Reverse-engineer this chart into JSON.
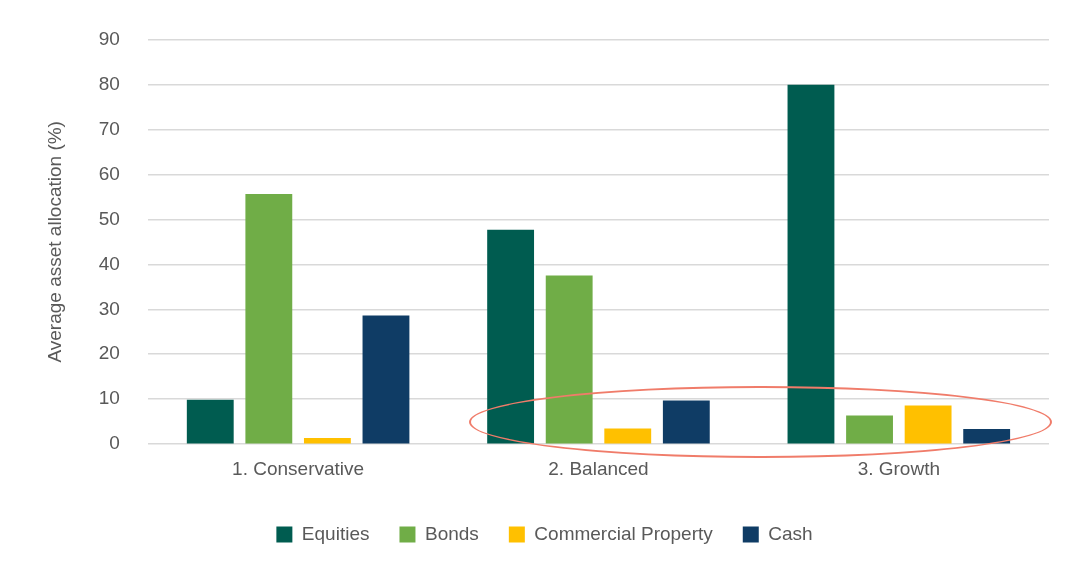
{
  "chart_data": {
    "type": "bar",
    "ylabel": "Average asset allocation (%)",
    "categories": [
      "1. Conservative",
      "2. Balanced",
      "3. Growth"
    ],
    "series": [
      {
        "name": "Equities",
        "color": "#005c50",
        "values": [
          9.9,
          47.7,
          79.9
        ]
      },
      {
        "name": "Bonds",
        "color": "#70ad47",
        "values": [
          55.6,
          37.5,
          6.4
        ]
      },
      {
        "name": "Commercial Property",
        "color": "#ffc000",
        "values": [
          1.4,
          3.5,
          8.6
        ]
      },
      {
        "name": "Cash",
        "color": "#0f3c65",
        "values": [
          28.6,
          9.7,
          3.4
        ]
      }
    ],
    "ylim": [
      0,
      90
    ],
    "yticks": [
      0,
      10,
      20,
      30,
      40,
      50,
      60,
      70,
      80,
      90
    ],
    "grid": "y",
    "legend": "bottom"
  }
}
